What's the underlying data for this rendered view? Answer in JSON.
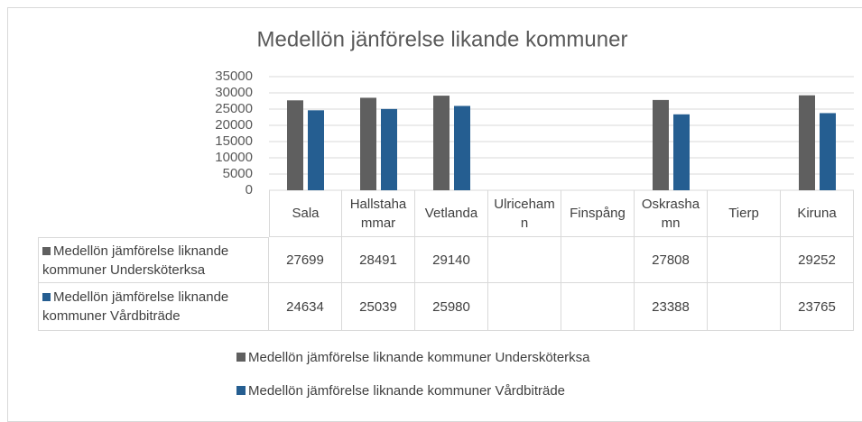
{
  "chart_data": {
    "type": "bar",
    "title": "Medellön jänförelse likande kommuner",
    "categories": [
      "Sala",
      "Hallstahammar",
      "Vetlanda",
      "Ulricehamn",
      "Finspång",
      "Oskrashamn",
      "Tierp",
      "Kiruna"
    ],
    "series": [
      {
        "name": "Medellön jämförelse liknande kommuner  Undersköterksa",
        "color": "#5f5f5f",
        "values": [
          27699,
          28491,
          29140,
          null,
          null,
          27808,
          null,
          29252
        ]
      },
      {
        "name": "Medellön jämförelse liknande kommuner  Vårdbiträde",
        "color": "#255e91",
        "values": [
          24634,
          25039,
          25980,
          null,
          null,
          23388,
          null,
          23765
        ]
      }
    ],
    "ylim": [
      0,
      35000
    ],
    "yticks": [
      0,
      5000,
      10000,
      15000,
      20000,
      25000,
      30000,
      35000
    ],
    "grid": true
  }
}
